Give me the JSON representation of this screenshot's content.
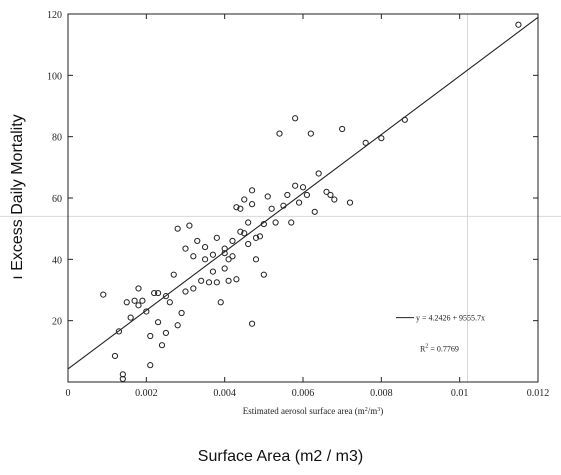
{
  "outer_labels": {
    "ylabel": "ı Excess Daily Mortality",
    "xlabel": "Surface Area (m2 / m3)"
  },
  "chart_data": {
    "type": "scatter",
    "title": "",
    "xlabel": "Estimated aerosol surface area (m²/m³)",
    "ylabel": "",
    "xlim": [
      0,
      0.012
    ],
    "ylim": [
      0,
      120
    ],
    "xticks": [
      0,
      0.002,
      0.004,
      0.006,
      0.008,
      0.01,
      0.012
    ],
    "xtick_labels": [
      "0",
      "0.002",
      "0.004",
      "0.006",
      "0.008",
      "0.01",
      "0.012"
    ],
    "yticks": [
      20,
      40,
      60,
      80,
      100,
      120
    ],
    "ytick_labels": [
      "20",
      "40",
      "60",
      "80",
      "100",
      "120"
    ],
    "grid": false,
    "series": [
      {
        "name": "",
        "marker": "circle-open",
        "points": [
          [
            0.0009,
            28.5
          ],
          [
            0.0012,
            8.5
          ],
          [
            0.0013,
            16.5
          ],
          [
            0.0014,
            2.5
          ],
          [
            0.0014,
            1
          ],
          [
            0.0015,
            26
          ],
          [
            0.0016,
            21
          ],
          [
            0.0017,
            26.5
          ],
          [
            0.0018,
            25
          ],
          [
            0.0018,
            30.5
          ],
          [
            0.0019,
            26.5
          ],
          [
            0.002,
            23
          ],
          [
            0.0021,
            5.5
          ],
          [
            0.0021,
            15
          ],
          [
            0.0022,
            29
          ],
          [
            0.0023,
            19.5
          ],
          [
            0.0023,
            29
          ],
          [
            0.0024,
            12
          ],
          [
            0.0025,
            16
          ],
          [
            0.0025,
            28
          ],
          [
            0.0026,
            26
          ],
          [
            0.0027,
            35
          ],
          [
            0.0028,
            18.5
          ],
          [
            0.0028,
            50
          ],
          [
            0.0029,
            22.5
          ],
          [
            0.003,
            29.5
          ],
          [
            0.003,
            43.5
          ],
          [
            0.0031,
            51
          ],
          [
            0.0032,
            30.5
          ],
          [
            0.0032,
            41
          ],
          [
            0.0033,
            46
          ],
          [
            0.0034,
            33
          ],
          [
            0.0035,
            40
          ],
          [
            0.0035,
            44
          ],
          [
            0.0036,
            32.5
          ],
          [
            0.0037,
            36
          ],
          [
            0.0037,
            41.5
          ],
          [
            0.0038,
            32.5
          ],
          [
            0.0038,
            47
          ],
          [
            0.0039,
            26
          ],
          [
            0.004,
            37
          ],
          [
            0.004,
            42
          ],
          [
            0.004,
            43.5
          ],
          [
            0.0041,
            40
          ],
          [
            0.0041,
            33
          ],
          [
            0.0042,
            46
          ],
          [
            0.0042,
            41
          ],
          [
            0.0043,
            33.5
          ],
          [
            0.0043,
            57
          ],
          [
            0.0044,
            56.5
          ],
          [
            0.0044,
            49
          ],
          [
            0.0045,
            48.5
          ],
          [
            0.0045,
            59.5
          ],
          [
            0.0046,
            45
          ],
          [
            0.0046,
            52
          ],
          [
            0.0047,
            19
          ],
          [
            0.0047,
            62.5
          ],
          [
            0.0047,
            58
          ],
          [
            0.0048,
            47
          ],
          [
            0.0048,
            40
          ],
          [
            0.0049,
            47.5
          ],
          [
            0.005,
            51.5
          ],
          [
            0.005,
            35
          ],
          [
            0.0051,
            60.5
          ],
          [
            0.0052,
            56.5
          ],
          [
            0.0053,
            52
          ],
          [
            0.0054,
            81
          ],
          [
            0.0055,
            57.5
          ],
          [
            0.0056,
            61
          ],
          [
            0.0057,
            52
          ],
          [
            0.0058,
            64
          ],
          [
            0.0058,
            86
          ],
          [
            0.0059,
            58.5
          ],
          [
            0.006,
            63.5
          ],
          [
            0.0061,
            61
          ],
          [
            0.0062,
            81
          ],
          [
            0.0063,
            55.5
          ],
          [
            0.0064,
            68
          ],
          [
            0.0066,
            62
          ],
          [
            0.0067,
            61
          ],
          [
            0.0068,
            59.5
          ],
          [
            0.007,
            82.5
          ],
          [
            0.0072,
            58.5
          ],
          [
            0.0076,
            78
          ],
          [
            0.008,
            79.5
          ],
          [
            0.0086,
            85.5
          ],
          [
            0.0115,
            116.5
          ]
        ]
      }
    ],
    "fit_line": {
      "intercept": 4.2426,
      "slope": 9555.7
    },
    "legend": {
      "equation": "y = 4.2426 + 9555.7x",
      "r2_prefix": "R",
      "r2_suffix": " = 0.7769",
      "placement": "right"
    },
    "crosshair": {
      "x": 0.0102,
      "y": 54
    },
    "colors": {
      "ink": "#222222",
      "crosshair": "#d8d8d8"
    }
  }
}
